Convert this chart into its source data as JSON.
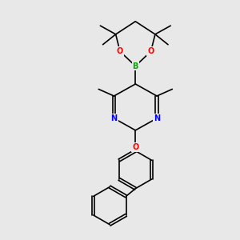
{
  "background_color": "#e8e8e8",
  "atom_colors": {
    "C": "#000000",
    "N": "#0000ff",
    "O": "#ff0000",
    "B": "#00aa00"
  },
  "bond_color": "#000000",
  "font_size": 7,
  "figsize": [
    3.0,
    3.0
  ],
  "dpi": 100
}
